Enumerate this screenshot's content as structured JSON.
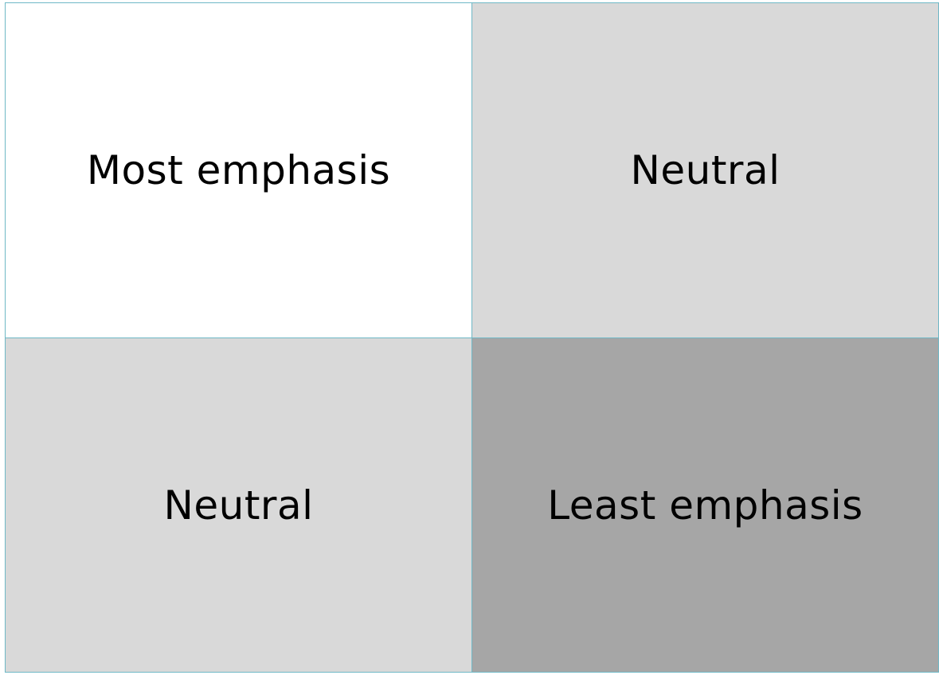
{
  "matrix": {
    "cells": [
      {
        "label": "Most emphasis",
        "fill": "#ffffff"
      },
      {
        "label": "Neutral",
        "fill": "#d9d9d9"
      },
      {
        "label": "Neutral",
        "fill": "#d9d9d9"
      },
      {
        "label": "Least emphasis",
        "fill": "#a6a6a6"
      }
    ],
    "border_color": "#6fb8c6"
  }
}
